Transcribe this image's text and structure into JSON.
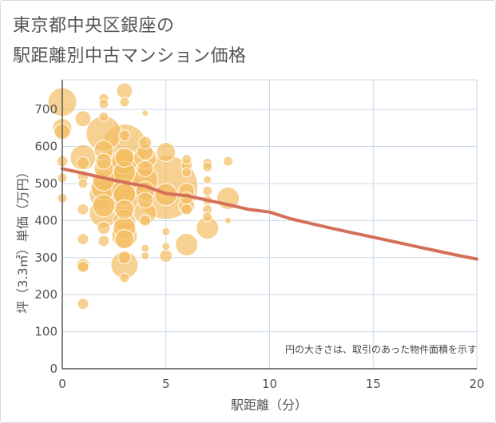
{
  "title_line1": "東京都中央区銀座の",
  "title_line2": "駅距離別中古マンション価格",
  "colors": {
    "bubble": "#f3bd62",
    "trend": "#d4705a",
    "grid": "#c9d8e8",
    "axis": "#555555"
  },
  "chart_data": {
    "type": "scatter",
    "xlabel": "駅距離（分）",
    "ylabel": "坪（3.3㎡）単価（万円）",
    "xlim": [
      0,
      20
    ],
    "ylim": [
      0,
      780
    ],
    "xticks": [
      0,
      5,
      10,
      15,
      20
    ],
    "yticks": [
      0,
      100,
      200,
      300,
      400,
      500,
      600,
      700
    ],
    "note": "円の大きさは、取引のあった物件面積を示す",
    "points": [
      {
        "x": 0,
        "y": 720,
        "s": 18
      },
      {
        "x": 0,
        "y": 650,
        "s": 12
      },
      {
        "x": 0,
        "y": 640,
        "s": 10
      },
      {
        "x": 0,
        "y": 560,
        "s": 7
      },
      {
        "x": 0,
        "y": 515,
        "s": 6
      },
      {
        "x": 0,
        "y": 460,
        "s": 6
      },
      {
        "x": 1,
        "y": 675,
        "s": 10
      },
      {
        "x": 1,
        "y": 570,
        "s": 16
      },
      {
        "x": 1,
        "y": 555,
        "s": 8
      },
      {
        "x": 1,
        "y": 520,
        "s": 7
      },
      {
        "x": 1,
        "y": 500,
        "s": 6
      },
      {
        "x": 1,
        "y": 430,
        "s": 7
      },
      {
        "x": 1,
        "y": 350,
        "s": 7
      },
      {
        "x": 1,
        "y": 280,
        "s": 8
      },
      {
        "x": 1,
        "y": 275,
        "s": 7
      },
      {
        "x": 1,
        "y": 175,
        "s": 7
      },
      {
        "x": 2,
        "y": 730,
        "s": 6
      },
      {
        "x": 2,
        "y": 715,
        "s": 6
      },
      {
        "x": 2,
        "y": 680,
        "s": 6
      },
      {
        "x": 2,
        "y": 635,
        "s": 22
      },
      {
        "x": 2,
        "y": 590,
        "s": 12
      },
      {
        "x": 2,
        "y": 560,
        "s": 10
      },
      {
        "x": 2,
        "y": 540,
        "s": 12
      },
      {
        "x": 2,
        "y": 510,
        "s": 14
      },
      {
        "x": 2,
        "y": 490,
        "s": 16
      },
      {
        "x": 2,
        "y": 470,
        "s": 18
      },
      {
        "x": 2,
        "y": 440,
        "s": 14
      },
      {
        "x": 2,
        "y": 420,
        "s": 18
      },
      {
        "x": 2,
        "y": 380,
        "s": 8
      },
      {
        "x": 2,
        "y": 345,
        "s": 7
      },
      {
        "x": 3,
        "y": 750,
        "s": 10
      },
      {
        "x": 3,
        "y": 720,
        "s": 6
      },
      {
        "x": 3,
        "y": 630,
        "s": 7
      },
      {
        "x": 3,
        "y": 600,
        "s": 28
      },
      {
        "x": 3,
        "y": 570,
        "s": 12
      },
      {
        "x": 3,
        "y": 560,
        "s": 16
      },
      {
        "x": 3,
        "y": 540,
        "s": 20
      },
      {
        "x": 3,
        "y": 530,
        "s": 14
      },
      {
        "x": 3,
        "y": 510,
        "s": 18
      },
      {
        "x": 3,
        "y": 490,
        "s": 24
      },
      {
        "x": 3,
        "y": 480,
        "s": 16
      },
      {
        "x": 3,
        "y": 470,
        "s": 14
      },
      {
        "x": 3,
        "y": 450,
        "s": 18
      },
      {
        "x": 3,
        "y": 430,
        "s": 12
      },
      {
        "x": 3,
        "y": 400,
        "s": 14
      },
      {
        "x": 3,
        "y": 380,
        "s": 14
      },
      {
        "x": 3,
        "y": 360,
        "s": 16
      },
      {
        "x": 3,
        "y": 350,
        "s": 12
      },
      {
        "x": 3,
        "y": 300,
        "s": 8
      },
      {
        "x": 3,
        "y": 280,
        "s": 17
      },
      {
        "x": 3,
        "y": 245,
        "s": 6
      },
      {
        "x": 4,
        "y": 690,
        "s": 4
      },
      {
        "x": 4,
        "y": 610,
        "s": 8
      },
      {
        "x": 4,
        "y": 585,
        "s": 10
      },
      {
        "x": 4,
        "y": 570,
        "s": 14
      },
      {
        "x": 4,
        "y": 540,
        "s": 10
      },
      {
        "x": 4,
        "y": 510,
        "s": 16
      },
      {
        "x": 4,
        "y": 480,
        "s": 12
      },
      {
        "x": 4,
        "y": 455,
        "s": 10
      },
      {
        "x": 4,
        "y": 420,
        "s": 14
      },
      {
        "x": 4,
        "y": 400,
        "s": 7
      },
      {
        "x": 4,
        "y": 325,
        "s": 5
      },
      {
        "x": 4,
        "y": 305,
        "s": 5
      },
      {
        "x": 5,
        "y": 585,
        "s": 12
      },
      {
        "x": 5,
        "y": 490,
        "s": 40
      },
      {
        "x": 5,
        "y": 470,
        "s": 14
      },
      {
        "x": 5,
        "y": 370,
        "s": 5
      },
      {
        "x": 5,
        "y": 330,
        "s": 5
      },
      {
        "x": 5,
        "y": 305,
        "s": 8
      },
      {
        "x": 6,
        "y": 565,
        "s": 6
      },
      {
        "x": 6,
        "y": 550,
        "s": 7
      },
      {
        "x": 6,
        "y": 530,
        "s": 6
      },
      {
        "x": 6,
        "y": 480,
        "s": 10
      },
      {
        "x": 6,
        "y": 460,
        "s": 8
      },
      {
        "x": 6,
        "y": 440,
        "s": 10
      },
      {
        "x": 6,
        "y": 430,
        "s": 7
      },
      {
        "x": 6,
        "y": 335,
        "s": 14
      },
      {
        "x": 7,
        "y": 555,
        "s": 6
      },
      {
        "x": 7,
        "y": 545,
        "s": 6
      },
      {
        "x": 7,
        "y": 510,
        "s": 5
      },
      {
        "x": 7,
        "y": 480,
        "s": 6
      },
      {
        "x": 7,
        "y": 455,
        "s": 6
      },
      {
        "x": 7,
        "y": 430,
        "s": 6
      },
      {
        "x": 7,
        "y": 410,
        "s": 6
      },
      {
        "x": 7,
        "y": 380,
        "s": 14
      },
      {
        "x": 8,
        "y": 560,
        "s": 6
      },
      {
        "x": 8,
        "y": 460,
        "s": 14
      },
      {
        "x": 8,
        "y": 400,
        "s": 4
      }
    ],
    "trend": {
      "x": [
        0,
        1,
        2,
        3,
        4,
        5,
        6,
        7,
        8,
        9,
        10,
        11,
        12,
        13,
        14,
        15,
        16,
        17,
        18,
        19,
        20
      ],
      "y": [
        540,
        528,
        515,
        503,
        493,
        473,
        467,
        455,
        443,
        430,
        423,
        405,
        392,
        379,
        367,
        355,
        343,
        331,
        319,
        307,
        296
      ]
    }
  }
}
